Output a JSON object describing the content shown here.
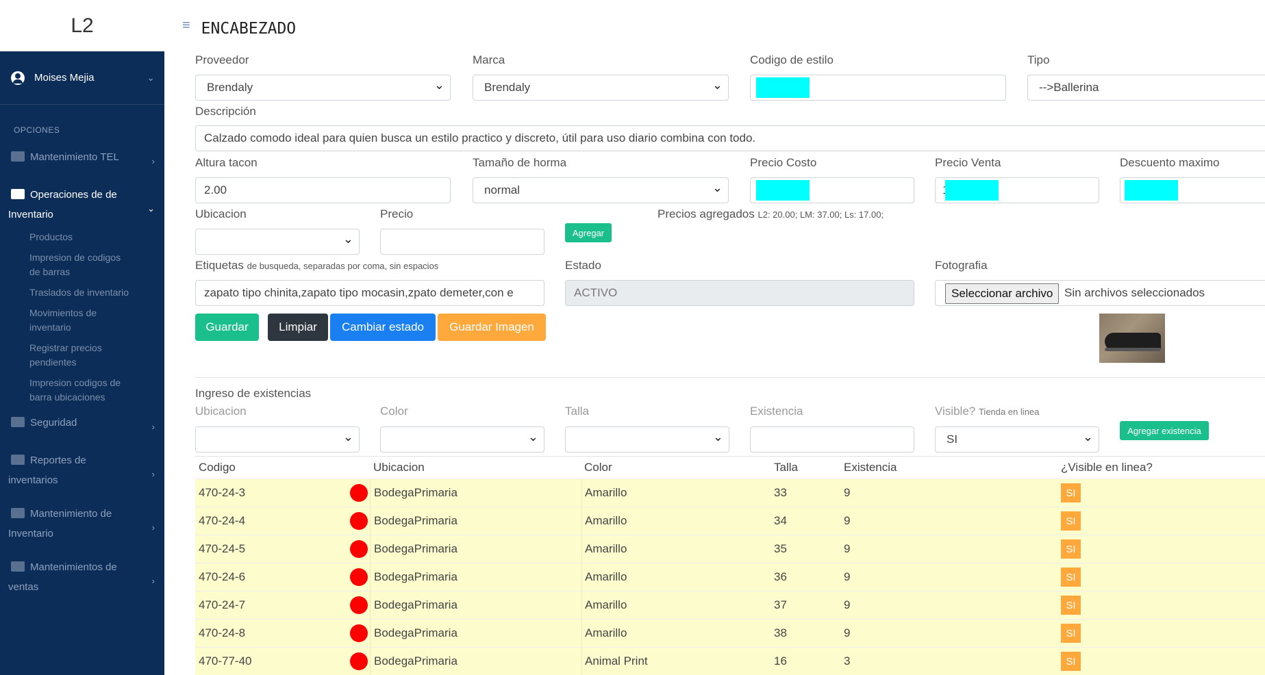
{
  "brand": "L2",
  "header": {
    "title": "ENCABEZADO"
  },
  "sidebar": {
    "user": "Moises Mejia",
    "section": "OPCIONES",
    "items": [
      {
        "label": "Mantenimiento TEL"
      },
      {
        "label_line1": "Operaciones de de",
        "label_line2": "Inventario"
      },
      {
        "label": "Seguridad"
      },
      {
        "label_line1": "Reportes de",
        "label_line2": "inventarios"
      },
      {
        "label_line1": "Mantenimiento de",
        "label_line2": "Inventario"
      },
      {
        "label_line1": "Mantenimientos de",
        "label_line2": "ventas"
      }
    ],
    "subitems": [
      {
        "line1": "Productos",
        "line2": ""
      },
      {
        "line1": "Impresion de codigos",
        "line2": "de barras"
      },
      {
        "line1": "Traslados de inventario",
        "line2": ""
      },
      {
        "line1": "Movimientos de",
        "line2": "inventario"
      },
      {
        "line1": "Registrar precios",
        "line2": "pendientes"
      },
      {
        "line1": "Impresion codigos de",
        "line2": "barra ubicaciones"
      }
    ]
  },
  "form": {
    "proveedor_label": "Proveedor",
    "proveedor_value": "Brendaly",
    "marca_label": "Marca",
    "marca_value": "Brendaly",
    "codigo_label": "Codigo de estilo",
    "tipo_label": "Tipo",
    "tipo_value": "-->Ballerina",
    "descripcion_label": "Descripción",
    "descripcion_value": "Calzado comodo ideal para quien busca un estilo practico y discreto, útil para uso diario combina con todo.",
    "altura_label": "Altura tacon",
    "altura_value": "2.00",
    "horma_label": "Tamaño de horma",
    "horma_value": "normal",
    "costo_label": "Precio Costo",
    "venta_label": "Precio Venta",
    "venta_prefix": "1",
    "descuento_label": "Descuento maximo",
    "ubicacion_label": "Ubicacion",
    "precio_label": "Precio",
    "agregar_button": "Agregar",
    "precios_label": "Precios agregados",
    "precios_value": "L2: 20.00; LM: 37.00; Ls: 17.00;",
    "etiquetas_label": "Etiquetas",
    "etiquetas_hint": "de busqueda, separadas por coma, sin espacios",
    "etiquetas_value": "zapato tipo chinita,zapato tipo mocasin,zpato demeter,con e",
    "estado_label": "Estado",
    "estado_value": "ACTIVO",
    "foto_label": "Fotografia",
    "file_button": "Seleccionar archivo",
    "file_status": "Sin archivos seleccionados",
    "guardar_button": "Guardar",
    "limpiar_button": "Limpiar",
    "cambiar_button": "Cambiar estado",
    "guardar_imagen_button": "Guardar Imagen"
  },
  "stock": {
    "title": "Ingreso de existencias",
    "ubicacion_label": "Ubicacion",
    "color_label": "Color",
    "talla_label": "Talla",
    "existencia_label": "Existencia",
    "visible_label": "Visible?",
    "visible_hint": "Tienda en linea",
    "visible_value": "SI",
    "agregar_button": "Agregar existencia"
  },
  "table": {
    "headers": [
      "Codigo",
      "Ubicacion",
      "Color",
      "Talla",
      "Existencia",
      "¿Visible en linea?"
    ],
    "rows": [
      {
        "codigo": "470-24-3",
        "ubicacion": "BodegaPrimaria",
        "color": "Amarillo",
        "talla": "33",
        "existencia": "9",
        "visible": "SI"
      },
      {
        "codigo": "470-24-4",
        "ubicacion": "BodegaPrimaria",
        "color": "Amarillo",
        "talla": "34",
        "existencia": "9",
        "visible": "SI"
      },
      {
        "codigo": "470-24-5",
        "ubicacion": "BodegaPrimaria",
        "color": "Amarillo",
        "talla": "35",
        "existencia": "9",
        "visible": "SI"
      },
      {
        "codigo": "470-24-6",
        "ubicacion": "BodegaPrimaria",
        "color": "Amarillo",
        "talla": "36",
        "existencia": "9",
        "visible": "SI"
      },
      {
        "codigo": "470-24-7",
        "ubicacion": "BodegaPrimaria",
        "color": "Amarillo",
        "talla": "37",
        "existencia": "9",
        "visible": "SI"
      },
      {
        "codigo": "470-24-8",
        "ubicacion": "BodegaPrimaria",
        "color": "Amarillo",
        "talla": "38",
        "existencia": "9",
        "visible": "SI"
      },
      {
        "codigo": "470-77-40",
        "ubicacion": "BodegaPrimaria",
        "color": "Animal Print",
        "talla": "16",
        "existencia": "3",
        "visible": "SI"
      }
    ]
  },
  "colors": {
    "sidebar_bg": "#0c2d57",
    "green": "#1bbf8b",
    "blue": "#1a7ff0",
    "orange": "#ffa83c",
    "row_bg": "#fdfccd",
    "redacted": "#00ffff",
    "status_dot": "#ff0000"
  }
}
